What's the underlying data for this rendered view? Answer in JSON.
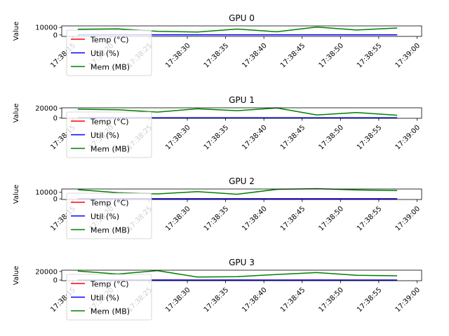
{
  "chart_data": [
    {
      "type": "line",
      "title": "GPU 0",
      "ylabel": "Value",
      "xlabel": "",
      "yticks": [
        "0",
        "10000"
      ],
      "ylim": [
        -2000,
        12000
      ],
      "xlim": [
        "17:38:13.6",
        "17:39:00.6"
      ],
      "xtick_labels": [
        "17:38:15",
        "17:38:20",
        "17:38:25",
        "17:38:30",
        "17:38:35",
        "17:38:40",
        "17:38:45",
        "17:38:50",
        "17:38:55",
        "17:39:00"
      ],
      "x": [
        "17:38:15.7",
        "17:38:20.9",
        "17:38:26.1",
        "17:38:31.3",
        "17:38:36.5",
        "17:38:41.7",
        "17:38:46.9",
        "17:38:52.1",
        "17:38:57.4"
      ],
      "series": [
        {
          "name": "Temp (°C)",
          "color": "#ff0000",
          "values": [
            45,
            46,
            47,
            46,
            48,
            47,
            49,
            48,
            47
          ]
        },
        {
          "name": "Util (%)",
          "color": "#0000ff",
          "values": [
            30,
            45,
            60,
            20,
            75,
            50,
            65,
            40,
            55
          ]
        },
        {
          "name": "Mem (MB)",
          "color": "#008000",
          "values": [
            7500,
            8000,
            4800,
            3800,
            7800,
            4200,
            10500,
            6500,
            9200
          ]
        }
      ],
      "legend": {
        "position": "lower-left",
        "entries": [
          "Temp (°C)",
          "Util (%)",
          "Mem (MB)"
        ]
      },
      "grid": false
    },
    {
      "type": "line",
      "title": "GPU 1",
      "ylabel": "Value",
      "xlabel": "",
      "yticks": [
        "0",
        "20000"
      ],
      "ylim": [
        -1000,
        21000
      ],
      "xlim": [
        "17:38:13.6",
        "17:39:00.6"
      ],
      "xtick_labels": [
        "17:38:15",
        "17:38:20",
        "17:38:25",
        "17:38:30",
        "17:38:35",
        "17:38:40",
        "17:38:45",
        "17:38:50",
        "17:38:55",
        "17:39:00"
      ],
      "x": [
        "17:38:15.7",
        "17:38:20.9",
        "17:38:26.1",
        "17:38:31.3",
        "17:38:36.5",
        "17:38:41.7",
        "17:38:46.9",
        "17:38:52.1",
        "17:38:57.4"
      ],
      "series": [
        {
          "name": "Temp (°C)",
          "color": "#ff0000",
          "values": [
            50,
            52,
            51,
            53,
            52,
            54,
            53,
            52,
            51
          ]
        },
        {
          "name": "Util (%)",
          "color": "#0000ff",
          "values": [
            40,
            60,
            35,
            80,
            55,
            70,
            45,
            65,
            50
          ]
        },
        {
          "name": "Mem (MB)",
          "color": "#008000",
          "values": [
            18000,
            17000,
            12000,
            19000,
            15000,
            20500,
            6000,
            11000,
            5500
          ]
        }
      ],
      "legend": {
        "position": "lower-left",
        "entries": [
          "Temp (°C)",
          "Util (%)",
          "Mem (MB)"
        ]
      },
      "grid": false
    },
    {
      "type": "line",
      "title": "GPU 2",
      "ylabel": "Value",
      "xlabel": "",
      "yticks": [
        "0",
        "10000"
      ],
      "ylim": [
        -1000,
        15000
      ],
      "xlim": [
        "17:38:13.6",
        "17:39:00.6"
      ],
      "xtick_labels": [
        "17:38:15",
        "17:38:20",
        "17:38:25",
        "17:38:30",
        "17:38:35",
        "17:38:40",
        "17:38:45",
        "17:38:50",
        "17:38:55",
        "17:39:00"
      ],
      "x": [
        "17:38:15.7",
        "17:38:20.9",
        "17:38:26.1",
        "17:38:31.3",
        "17:38:36.5",
        "17:38:41.7",
        "17:38:46.9",
        "17:38:52.1",
        "17:38:57.4"
      ],
      "series": [
        {
          "name": "Temp (°C)",
          "color": "#ff0000",
          "values": [
            44,
            45,
            46,
            45,
            47,
            46,
            45,
            44,
            45
          ]
        },
        {
          "name": "Util (%)",
          "color": "#0000ff",
          "values": [
            25,
            35,
            50,
            30,
            60,
            45,
            40,
            35,
            30
          ]
        },
        {
          "name": "Mem (MB)",
          "color": "#008000",
          "values": [
            14000,
            9500,
            7500,
            11000,
            7000,
            14500,
            15500,
            13500,
            12500
          ]
        }
      ],
      "legend": {
        "position": "lower-left",
        "entries": [
          "Temp (°C)",
          "Util (%)",
          "Mem (MB)"
        ]
      },
      "grid": false
    },
    {
      "type": "line",
      "title": "GPU 3",
      "ylabel": "Value",
      "xlabel": "",
      "yticks": [
        "0",
        "20000"
      ],
      "ylim": [
        -1500,
        23000
      ],
      "xlim": [
        "17:38:13.6",
        "17:39:00.6"
      ],
      "xtick_labels": [
        "17:38:15",
        "17:38:20",
        "17:38:25",
        "17:38:30",
        "17:38:35",
        "17:38:40",
        "17:38:45",
        "17:38:50",
        "17:38:55",
        "17:39:00"
      ],
      "x": [
        "17:38:15.7",
        "17:38:20.9",
        "17:38:26.1",
        "17:38:31.3",
        "17:38:36.5",
        "17:38:41.7",
        "17:38:46.9",
        "17:38:52.1",
        "17:38:57.4"
      ],
      "series": [
        {
          "name": "Temp (°C)",
          "color": "#ff0000",
          "values": [
            48,
            49,
            50,
            49,
            51,
            50,
            49,
            48,
            49
          ]
        },
        {
          "name": "Util (%)",
          "color": "#0000ff",
          "values": [
            35,
            50,
            65,
            30,
            55,
            45,
            60,
            40,
            50
          ]
        },
        {
          "name": "Mem (MB)",
          "color": "#008000",
          "values": [
            21000,
            14000,
            22000,
            7000,
            8000,
            13000,
            17500,
            11000,
            10000
          ]
        }
      ],
      "legend": {
        "position": "lower-left",
        "entries": [
          "Temp (°C)",
          "Util (%)",
          "Mem (MB)"
        ]
      },
      "grid": false
    }
  ]
}
